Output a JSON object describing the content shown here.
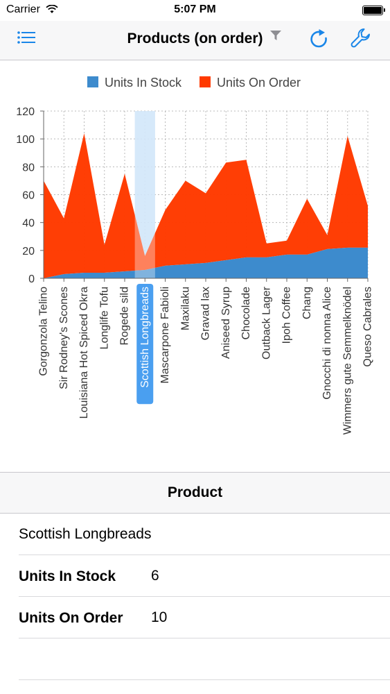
{
  "status_bar": {
    "carrier": "Carrier",
    "time": "5:07 PM"
  },
  "nav": {
    "title": "Products (on order)"
  },
  "colors": {
    "in_stock": "#3d8bcd",
    "on_order": "#ff3a00",
    "selection": "#b6d7f7",
    "selected_label": "#4a9ff0",
    "accent": "#1a86e8"
  },
  "chart_data": {
    "type": "area",
    "stacked": true,
    "legend_position": "top",
    "grid": true,
    "ylim": [
      0,
      120
    ],
    "yticks": [
      0,
      20,
      40,
      60,
      80,
      100,
      120
    ],
    "categories": [
      "Gorgonzola Telino",
      "Sir Rodney's Scones",
      "Louisiana Hot Spiced Okra",
      "Longlife Tofu",
      "Rogede sild",
      "Scottish Longbreads",
      "Mascarpone Fabioli",
      "Maxilaku",
      "Gravad lax",
      "Aniseed Syrup",
      "Chocolade",
      "Outback Lager",
      "Ipoh Coffee",
      "Chang",
      "Gnocchi di nonna Alice",
      "Wimmers gute Semmelknödel",
      "Queso Cabrales"
    ],
    "selected_index": 5,
    "series": [
      {
        "name": "Units In Stock",
        "values": [
          0,
          3,
          4,
          4,
          5,
          6,
          9,
          10,
          11,
          13,
          15,
          15,
          17,
          17,
          21,
          22,
          22
        ]
      },
      {
        "name": "Units On Order",
        "values": [
          70,
          40,
          100,
          20,
          70,
          10,
          40,
          60,
          50,
          70,
          70,
          10,
          10,
          40,
          10,
          80,
          30
        ]
      }
    ]
  },
  "detail": {
    "header": "Product",
    "product_name": "Scottish Longbreads",
    "units_in_stock_label": "Units In Stock",
    "units_in_stock_value": "6",
    "units_on_order_label": "Units On Order",
    "units_on_order_value": "10"
  }
}
